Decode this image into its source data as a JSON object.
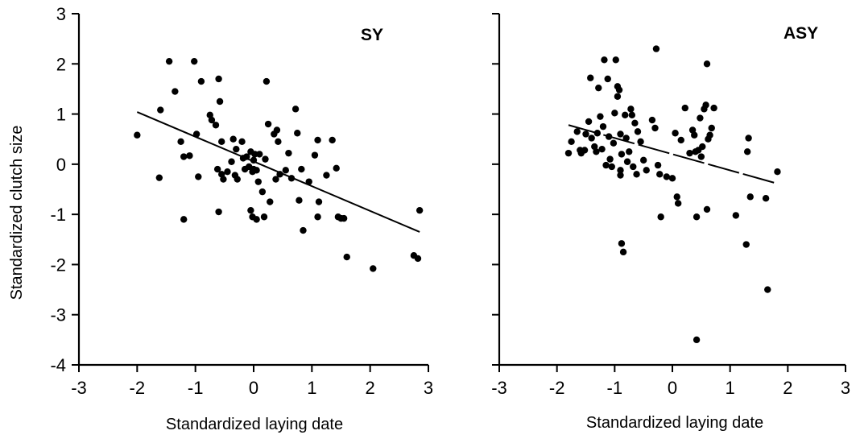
{
  "chart_data": [
    {
      "type": "scatter",
      "panel_label": "SY",
      "xlabel": "Standardized laying date",
      "ylabel": "Standardized clutch size",
      "xlim": [
        -3,
        3
      ],
      "ylim": [
        -4,
        3
      ],
      "xticks": [
        "-3",
        "-2",
        "-1",
        "0",
        "1",
        "2",
        "3"
      ],
      "yticks": [
        "3",
        "2",
        "1",
        "0",
        "-1",
        "-2",
        "-3",
        "-4"
      ],
      "grid": false,
      "trendline": {
        "style": "solid",
        "x": [
          -2.0,
          2.85
        ],
        "y": [
          1.04,
          -1.35
        ]
      },
      "points": [
        [
          -2.0,
          0.58
        ],
        [
          -1.6,
          1.08
        ],
        [
          -1.62,
          -0.27
        ],
        [
          -1.45,
          2.05
        ],
        [
          -1.35,
          1.45
        ],
        [
          -1.25,
          0.45
        ],
        [
          -1.2,
          -1.1
        ],
        [
          -1.1,
          0.17
        ],
        [
          -1.2,
          0.15
        ],
        [
          -1.02,
          2.05
        ],
        [
          -0.98,
          0.6
        ],
        [
          -0.95,
          -0.25
        ],
        [
          -0.9,
          1.65
        ],
        [
          -0.75,
          0.98
        ],
        [
          -0.72,
          0.88
        ],
        [
          -0.65,
          0.78
        ],
        [
          -0.6,
          1.7
        ],
        [
          -0.58,
          1.25
        ],
        [
          -0.6,
          -0.95
        ],
        [
          -0.62,
          -0.1
        ],
        [
          -0.55,
          0.45
        ],
        [
          -0.55,
          -0.2
        ],
        [
          -0.52,
          -0.3
        ],
        [
          -0.45,
          -0.15
        ],
        [
          -0.38,
          0.05
        ],
        [
          -0.35,
          0.5
        ],
        [
          -0.32,
          -0.22
        ],
        [
          -0.3,
          0.3
        ],
        [
          -0.28,
          -0.3
        ],
        [
          -0.2,
          0.45
        ],
        [
          -0.18,
          0.12
        ],
        [
          -0.15,
          -0.1
        ],
        [
          -0.12,
          0.15
        ],
        [
          -0.08,
          -0.05
        ],
        [
          -0.05,
          0.25
        ],
        [
          -0.02,
          -0.15
        ],
        [
          0.0,
          0.08
        ],
        [
          0.02,
          0.2
        ],
        [
          0.05,
          -0.12
        ],
        [
          0.08,
          -0.35
        ],
        [
          -0.05,
          -0.92
        ],
        [
          -0.02,
          -1.05
        ],
        [
          0.05,
          -1.1
        ],
        [
          0.0,
          -0.1
        ],
        [
          0.1,
          0.2
        ],
        [
          0.15,
          -0.55
        ],
        [
          0.18,
          -1.05
        ],
        [
          0.2,
          0.1
        ],
        [
          0.22,
          1.65
        ],
        [
          0.25,
          0.8
        ],
        [
          0.28,
          -0.75
        ],
        [
          0.35,
          0.6
        ],
        [
          0.38,
          -0.3
        ],
        [
          0.42,
          0.45
        ],
        [
          0.4,
          0.68
        ],
        [
          0.45,
          -0.2
        ],
        [
          0.55,
          -0.12
        ],
        [
          0.6,
          0.22
        ],
        [
          0.65,
          -0.28
        ],
        [
          0.72,
          1.1
        ],
        [
          0.75,
          0.62
        ],
        [
          0.78,
          -0.72
        ],
        [
          0.82,
          -0.1
        ],
        [
          0.85,
          -1.32
        ],
        [
          0.95,
          -0.35
        ],
        [
          1.05,
          0.18
        ],
        [
          1.1,
          0.48
        ],
        [
          1.1,
          -1.05
        ],
        [
          1.12,
          -0.75
        ],
        [
          1.25,
          -0.22
        ],
        [
          1.35,
          0.48
        ],
        [
          1.42,
          -0.08
        ],
        [
          1.45,
          -1.05
        ],
        [
          1.5,
          -1.08
        ],
        [
          1.55,
          -1.08
        ],
        [
          1.6,
          -1.85
        ],
        [
          2.05,
          -2.08
        ],
        [
          2.75,
          -1.82
        ],
        [
          2.82,
          -1.88
        ],
        [
          2.85,
          -0.92
        ]
      ]
    },
    {
      "type": "scatter",
      "panel_label": "ASY",
      "xlabel": "Standardized laying date",
      "xlim": [
        -3,
        3
      ],
      "ylim": [
        -4,
        3
      ],
      "xticks": [
        "-3",
        "-2",
        "-1",
        "0",
        "1",
        "2",
        "3"
      ],
      "grid": false,
      "trendline": {
        "style": "dashed",
        "x": [
          -1.8,
          1.8
        ],
        "y": [
          0.78,
          -0.38
        ]
      },
      "points": [
        [
          -1.8,
          0.22
        ],
        [
          -1.75,
          0.45
        ],
        [
          -1.65,
          0.65
        ],
        [
          -1.6,
          0.28
        ],
        [
          -1.58,
          0.22
        ],
        [
          -1.52,
          0.28
        ],
        [
          -1.5,
          0.6
        ],
        [
          -1.45,
          0.85
        ],
        [
          -1.42,
          1.72
        ],
        [
          -1.4,
          0.52
        ],
        [
          -1.35,
          0.35
        ],
        [
          -1.32,
          0.25
        ],
        [
          -1.3,
          0.62
        ],
        [
          -1.28,
          1.52
        ],
        [
          -1.25,
          0.95
        ],
        [
          -1.22,
          0.3
        ],
        [
          -1.2,
          0.75
        ],
        [
          -1.18,
          2.08
        ],
        [
          -1.15,
          -0.02
        ],
        [
          -1.12,
          1.7
        ],
        [
          -1.1,
          0.55
        ],
        [
          -1.08,
          0.1
        ],
        [
          -1.05,
          -0.05
        ],
        [
          -1.02,
          0.42
        ],
        [
          -1.0,
          1.02
        ],
        [
          -0.98,
          2.08
        ],
        [
          -0.95,
          1.55
        ],
        [
          -0.95,
          1.35
        ],
        [
          -0.92,
          1.48
        ],
        [
          -0.9,
          0.6
        ],
        [
          -0.88,
          0.2
        ],
        [
          -0.9,
          -0.12
        ],
        [
          -0.9,
          -0.22
        ],
        [
          -0.88,
          -1.58
        ],
        [
          -0.85,
          -1.75
        ],
        [
          -0.82,
          0.98
        ],
        [
          -0.8,
          0.52
        ],
        [
          -0.78,
          0.05
        ],
        [
          -0.75,
          0.25
        ],
        [
          -0.72,
          1.1
        ],
        [
          -0.7,
          0.98
        ],
        [
          -0.68,
          -0.05
        ],
        [
          -0.65,
          0.82
        ],
        [
          -0.62,
          -0.2
        ],
        [
          -0.6,
          0.65
        ],
        [
          -0.55,
          0.45
        ],
        [
          -0.5,
          0.08
        ],
        [
          -0.45,
          -0.12
        ],
        [
          -0.35,
          0.88
        ],
        [
          -0.3,
          0.72
        ],
        [
          -0.28,
          2.3
        ],
        [
          -0.25,
          -0.02
        ],
        [
          -0.22,
          -0.2
        ],
        [
          -0.2,
          -1.05
        ],
        [
          -0.1,
          -0.25
        ],
        [
          0.0,
          -0.28
        ],
        [
          0.05,
          0.62
        ],
        [
          0.08,
          -0.65
        ],
        [
          0.1,
          -0.78
        ],
        [
          0.15,
          0.48
        ],
        [
          0.22,
          1.12
        ],
        [
          0.3,
          0.22
        ],
        [
          0.35,
          0.68
        ],
        [
          0.38,
          0.58
        ],
        [
          0.4,
          0.25
        ],
        [
          0.42,
          -1.05
        ],
        [
          0.42,
          -3.5
        ],
        [
          0.45,
          0.28
        ],
        [
          0.48,
          0.92
        ],
        [
          0.5,
          0.15
        ],
        [
          0.52,
          0.35
        ],
        [
          0.55,
          1.1
        ],
        [
          0.58,
          1.18
        ],
        [
          0.6,
          2.0
        ],
        [
          0.62,
          0.5
        ],
        [
          0.6,
          -0.9
        ],
        [
          0.65,
          0.58
        ],
        [
          0.68,
          0.72
        ],
        [
          0.72,
          1.12
        ],
        [
          1.1,
          -1.02
        ],
        [
          1.28,
          -1.6
        ],
        [
          1.3,
          0.25
        ],
        [
          1.32,
          0.52
        ],
        [
          1.35,
          -0.65
        ],
        [
          1.62,
          -0.68
        ],
        [
          1.65,
          -2.5
        ],
        [
          1.82,
          -0.15
        ]
      ]
    }
  ]
}
